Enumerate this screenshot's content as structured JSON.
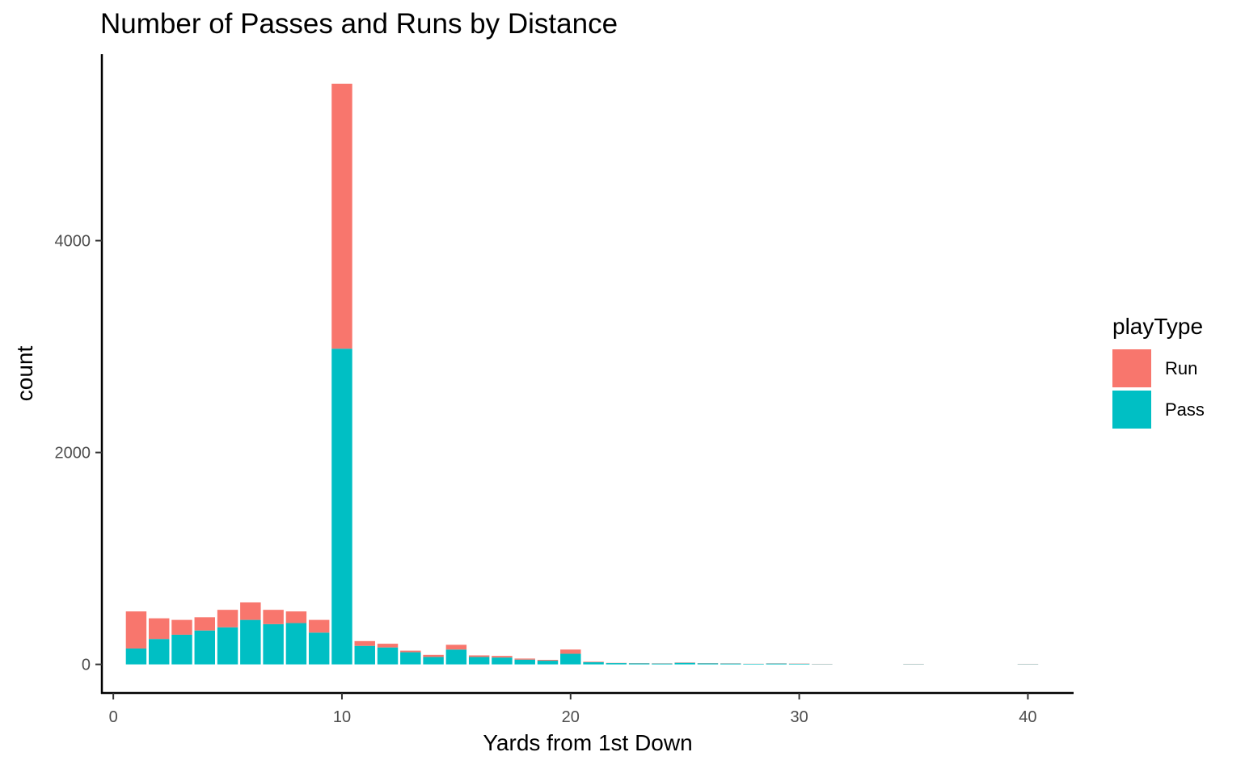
{
  "chart_data": {
    "type": "bar",
    "stacked": true,
    "title": "Number of Passes and Runs by Distance",
    "xlabel": "Yards from 1st Down",
    "ylabel": "count",
    "xlim": [
      -0.5,
      42
    ],
    "ylim": [
      -270,
      5760
    ],
    "xticks": [
      0,
      10,
      20,
      30,
      40
    ],
    "yticks": [
      0,
      2000,
      4000
    ],
    "grid": false,
    "legend": {
      "title": "playType",
      "placement": "right",
      "entries": [
        {
          "name": "Run",
          "color": "#F8766D"
        },
        {
          "name": "Pass",
          "color": "#00BFC4"
        }
      ]
    },
    "series": [
      {
        "name": "Pass",
        "color": "#00BFC4",
        "x": [
          1,
          2,
          3,
          4,
          5,
          6,
          7,
          8,
          9,
          10,
          11,
          12,
          13,
          14,
          15,
          16,
          17,
          18,
          19,
          20,
          21,
          22,
          23,
          24,
          25,
          26,
          27,
          28,
          29,
          30,
          31,
          35,
          40
        ],
        "values": [
          150,
          240,
          280,
          320,
          350,
          420,
          380,
          390,
          300,
          2980,
          175,
          160,
          115,
          70,
          140,
          70,
          65,
          45,
          35,
          100,
          20,
          12,
          10,
          8,
          15,
          10,
          8,
          5,
          8,
          6,
          3,
          3,
          3
        ]
      },
      {
        "name": "Run",
        "color": "#F8766D",
        "x": [
          1,
          2,
          3,
          4,
          5,
          6,
          7,
          8,
          9,
          10,
          11,
          12,
          13,
          14,
          15,
          16,
          17,
          18,
          19,
          20,
          21,
          22,
          23,
          24,
          25,
          26,
          27,
          28,
          29,
          30,
          31,
          35,
          40
        ],
        "values": [
          350,
          195,
          140,
          125,
          165,
          165,
          135,
          110,
          120,
          2500,
          45,
          35,
          15,
          20,
          45,
          15,
          15,
          10,
          8,
          40,
          5,
          2,
          2,
          2,
          3,
          2,
          2,
          1,
          2,
          2,
          2,
          2,
          2
        ]
      }
    ]
  }
}
